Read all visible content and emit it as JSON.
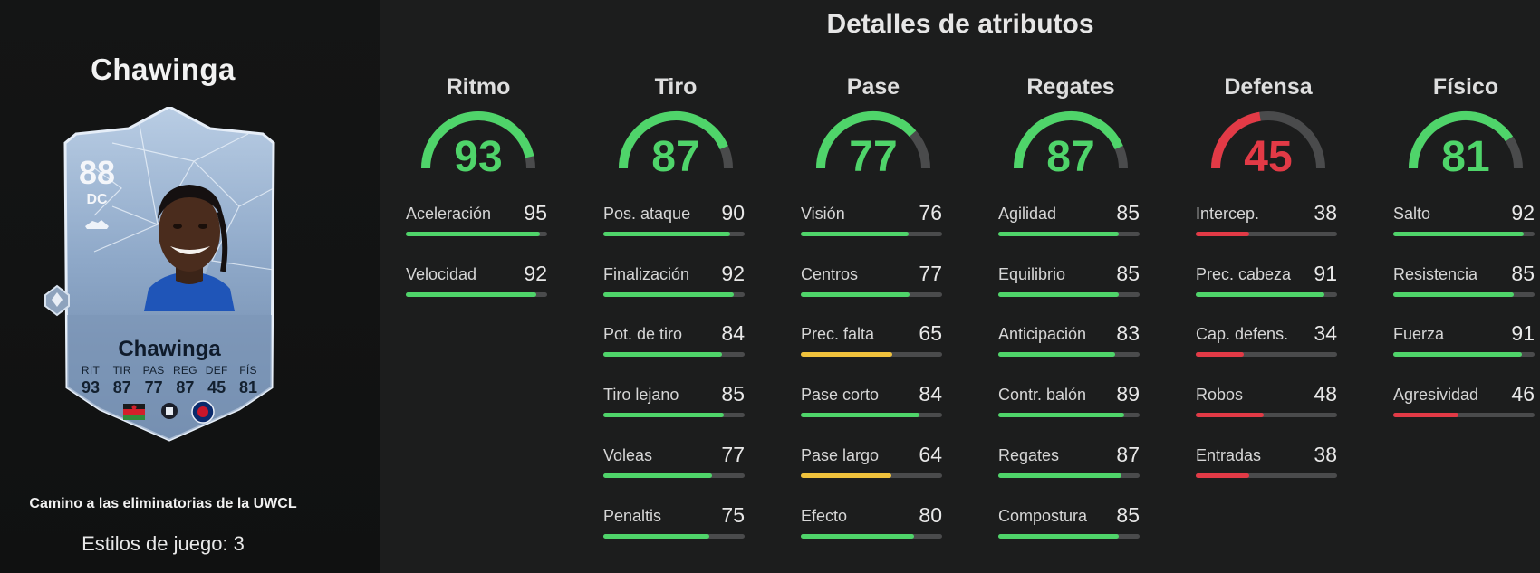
{
  "player": {
    "name": "Chawinga",
    "card_name": "Chawinga",
    "rating": "88",
    "position": "DC",
    "card_stats": [
      {
        "label": "RIT",
        "value": "93"
      },
      {
        "label": "TIR",
        "value": "87"
      },
      {
        "label": "PAS",
        "value": "77"
      },
      {
        "label": "REG",
        "value": "87"
      },
      {
        "label": "DEF",
        "value": "45"
      },
      {
        "label": "FÍS",
        "value": "81"
      }
    ],
    "promo": "Camino a las eliminatorias de la UWCL",
    "playstyles_label": "Estilos de juego: 3"
  },
  "colors": {
    "green": "#4fd46a",
    "yellow": "#f0c23c",
    "red": "#e23a46",
    "track": "#4a4b4c"
  },
  "section_title": "Detalles de atributos",
  "categories": [
    {
      "name": "Ritmo",
      "value": 93,
      "color": "green",
      "attributes": [
        {
          "name": "Aceleración",
          "value": 95,
          "color": "green"
        },
        {
          "name": "Velocidad",
          "value": 92,
          "color": "green"
        }
      ]
    },
    {
      "name": "Tiro",
      "value": 87,
      "color": "green",
      "attributes": [
        {
          "name": "Pos. ataque",
          "value": 90,
          "color": "green"
        },
        {
          "name": "Finalización",
          "value": 92,
          "color": "green"
        },
        {
          "name": "Pot. de tiro",
          "value": 84,
          "color": "green"
        },
        {
          "name": "Tiro lejano",
          "value": 85,
          "color": "green"
        },
        {
          "name": "Voleas",
          "value": 77,
          "color": "green"
        },
        {
          "name": "Penaltis",
          "value": 75,
          "color": "green"
        }
      ]
    },
    {
      "name": "Pase",
      "value": 77,
      "color": "green",
      "attributes": [
        {
          "name": "Visión",
          "value": 76,
          "color": "green"
        },
        {
          "name": "Centros",
          "value": 77,
          "color": "green"
        },
        {
          "name": "Prec. falta",
          "value": 65,
          "color": "yellow"
        },
        {
          "name": "Pase corto",
          "value": 84,
          "color": "green"
        },
        {
          "name": "Pase largo",
          "value": 64,
          "color": "yellow"
        },
        {
          "name": "Efecto",
          "value": 80,
          "color": "green"
        }
      ]
    },
    {
      "name": "Regates",
      "value": 87,
      "color": "green",
      "attributes": [
        {
          "name": "Agilidad",
          "value": 85,
          "color": "green"
        },
        {
          "name": "Equilibrio",
          "value": 85,
          "color": "green"
        },
        {
          "name": "Anticipación",
          "value": 83,
          "color": "green"
        },
        {
          "name": "Contr. balón",
          "value": 89,
          "color": "green"
        },
        {
          "name": "Regates",
          "value": 87,
          "color": "green"
        },
        {
          "name": "Compostura",
          "value": 85,
          "color": "green"
        }
      ]
    },
    {
      "name": "Defensa",
      "value": 45,
      "color": "red",
      "attributes": [
        {
          "name": "Intercep.",
          "value": 38,
          "color": "red"
        },
        {
          "name": "Prec. cabeza",
          "value": 91,
          "color": "green"
        },
        {
          "name": "Cap. defens.",
          "value": 34,
          "color": "red"
        },
        {
          "name": "Robos",
          "value": 48,
          "color": "red"
        },
        {
          "name": "Entradas",
          "value": 38,
          "color": "red"
        }
      ]
    },
    {
      "name": "Físico",
      "value": 81,
      "color": "green",
      "attributes": [
        {
          "name": "Salto",
          "value": 92,
          "color": "green"
        },
        {
          "name": "Resistencia",
          "value": 85,
          "color": "green"
        },
        {
          "name": "Fuerza",
          "value": 91,
          "color": "green"
        },
        {
          "name": "Agresividad",
          "value": 46,
          "color": "red"
        }
      ]
    }
  ]
}
